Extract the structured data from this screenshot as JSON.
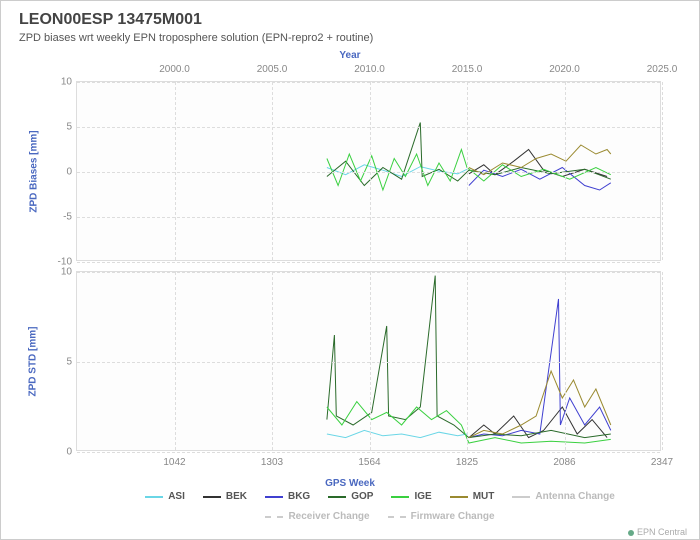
{
  "title": "LEON00ESP 13475M001",
  "subtitle": "ZPD biases wrt weekly EPN troposphere solution (EPN-repro2 + routine)",
  "top_axis": {
    "label": "Year",
    "ticks": [
      "2000.0",
      "2005.0",
      "2010.0",
      "2015.0",
      "2020.0",
      "2025.0"
    ]
  },
  "bottom_axis": {
    "label": "GPS Week",
    "ticks": [
      "1042",
      "1303",
      "1564",
      "1825",
      "2086",
      "2347"
    ]
  },
  "panel_top": {
    "ylabel": "ZPD Biases [mm]",
    "ylim": [
      -10,
      10
    ],
    "yticks": [
      -10,
      -5,
      0,
      5,
      10
    ]
  },
  "panel_bottom": {
    "ylabel": "ZPD STD [mm]",
    "ylim": [
      0,
      10
    ],
    "yticks": [
      0,
      5,
      10
    ]
  },
  "series": [
    {
      "name": "ASI",
      "color": "#6ad6e6",
      "style": "solid"
    },
    {
      "name": "BEK",
      "color": "#333333",
      "style": "solid"
    },
    {
      "name": "BKG",
      "color": "#4040d0",
      "style": "solid"
    },
    {
      "name": "GOP",
      "color": "#2a6a2a",
      "style": "solid"
    },
    {
      "name": "IGE",
      "color": "#3ad040",
      "style": "solid"
    },
    {
      "name": "MUT",
      "color": "#9a8a30",
      "style": "solid"
    },
    {
      "name": "Antenna Change",
      "color": "#cccccc",
      "style": "solid"
    },
    {
      "name": "Receiver Change",
      "color": "#cccccc",
      "style": "dashed"
    },
    {
      "name": "Firmware Change",
      "color": "#cccccc",
      "style": "dashed"
    }
  ],
  "credit": "EPN Central",
  "colors": {
    "grid": "#dddddd",
    "accent": "#4a68c0",
    "text": "#555555"
  },
  "x_range": [
    781,
    2347
  ],
  "data_top": {
    "ASI": [
      [
        1450,
        0.5
      ],
      [
        1500,
        -0.3
      ],
      [
        1550,
        0.8
      ],
      [
        1600,
        0.2
      ],
      [
        1650,
        -0.5
      ],
      [
        1700,
        0.6
      ],
      [
        1750,
        0.1
      ],
      [
        1800,
        -0.2
      ],
      [
        1825,
        0.3
      ]
    ],
    "BEK": [
      [
        1830,
        -0.2
      ],
      [
        1870,
        0.8
      ],
      [
        1900,
        -0.3
      ],
      [
        1950,
        1.2
      ],
      [
        1990,
        2.5
      ],
      [
        2030,
        0.2
      ],
      [
        2080,
        -0.5
      ],
      [
        2140,
        0.3
      ],
      [
        2200,
        -0.5
      ]
    ],
    "BKG": [
      [
        1830,
        -1.5
      ],
      [
        1870,
        0.2
      ],
      [
        1920,
        -0.5
      ],
      [
        1970,
        0.3
      ],
      [
        2020,
        -0.8
      ],
      [
        2080,
        0.5
      ],
      [
        2140,
        -1.5
      ],
      [
        2180,
        -2
      ],
      [
        2210,
        -1.2
      ]
    ],
    "GOP": [
      [
        1450,
        -0.5
      ],
      [
        1500,
        1.2
      ],
      [
        1550,
        -1.5
      ],
      [
        1600,
        0.5
      ],
      [
        1650,
        -0.8
      ],
      [
        1700,
        5.5
      ],
      [
        1705,
        -0.5
      ],
      [
        1750,
        0.3
      ],
      [
        1800,
        -1
      ],
      [
        1830,
        0.2
      ],
      [
        1900,
        -0.3
      ],
      [
        1970,
        0.5
      ],
      [
        2050,
        -0.2
      ],
      [
        2140,
        0.3
      ],
      [
        2210,
        -0.8
      ]
    ],
    "IGE": [
      [
        1450,
        1.5
      ],
      [
        1480,
        -1.5
      ],
      [
        1510,
        2
      ],
      [
        1540,
        -1
      ],
      [
        1570,
        1.8
      ],
      [
        1600,
        -2
      ],
      [
        1630,
        1.5
      ],
      [
        1660,
        -0.5
      ],
      [
        1690,
        2
      ],
      [
        1720,
        -1.5
      ],
      [
        1750,
        1
      ],
      [
        1780,
        -1
      ],
      [
        1810,
        2.5
      ],
      [
        1825,
        0.5
      ],
      [
        1870,
        -1
      ],
      [
        1920,
        0.8
      ],
      [
        1970,
        -0.5
      ],
      [
        2030,
        0.3
      ],
      [
        2100,
        -0.8
      ],
      [
        2170,
        0.5
      ],
      [
        2210,
        -0.3
      ]
    ],
    "MUT": [
      [
        1830,
        0.5
      ],
      [
        1870,
        -0.3
      ],
      [
        1920,
        1
      ],
      [
        1970,
        0.5
      ],
      [
        2010,
        1.5
      ],
      [
        2050,
        2
      ],
      [
        2090,
        1.2
      ],
      [
        2130,
        3
      ],
      [
        2170,
        2
      ],
      [
        2200,
        2.5
      ],
      [
        2210,
        2
      ]
    ]
  },
  "data_bottom": {
    "ASI": [
      [
        1450,
        1
      ],
      [
        1500,
        0.8
      ],
      [
        1550,
        1.2
      ],
      [
        1600,
        0.9
      ],
      [
        1650,
        1
      ],
      [
        1700,
        0.8
      ],
      [
        1750,
        1.1
      ],
      [
        1800,
        0.9
      ],
      [
        1825,
        1
      ]
    ],
    "BEK": [
      [
        1830,
        0.8
      ],
      [
        1870,
        1.5
      ],
      [
        1900,
        1
      ],
      [
        1950,
        2
      ],
      [
        1990,
        0.8
      ],
      [
        2030,
        1.2
      ],
      [
        2080,
        2.5
      ],
      [
        2120,
        1
      ],
      [
        2160,
        1.8
      ],
      [
        2200,
        0.8
      ]
    ],
    "BKG": [
      [
        1830,
        0.8
      ],
      [
        1870,
        1
      ],
      [
        1920,
        0.9
      ],
      [
        1970,
        1.2
      ],
      [
        2020,
        1
      ],
      [
        2070,
        8.5
      ],
      [
        2075,
        1.5
      ],
      [
        2100,
        3
      ],
      [
        2140,
        1.5
      ],
      [
        2180,
        2.5
      ],
      [
        2210,
        1.2
      ]
    ],
    "GOP": [
      [
        1450,
        1.8
      ],
      [
        1470,
        6.5
      ],
      [
        1475,
        2
      ],
      [
        1520,
        1.5
      ],
      [
        1570,
        2.2
      ],
      [
        1610,
        7
      ],
      [
        1615,
        2
      ],
      [
        1660,
        1.8
      ],
      [
        1700,
        2.5
      ],
      [
        1740,
        9.8
      ],
      [
        1745,
        2
      ],
      [
        1790,
        1.5
      ],
      [
        1830,
        0.8
      ],
      [
        1900,
        1
      ],
      [
        1970,
        0.9
      ],
      [
        2050,
        1.2
      ],
      [
        2140,
        0.8
      ],
      [
        2210,
        1
      ]
    ],
    "IGE": [
      [
        1450,
        2.5
      ],
      [
        1490,
        1.5
      ],
      [
        1530,
        2.8
      ],
      [
        1570,
        1.8
      ],
      [
        1610,
        2.2
      ],
      [
        1650,
        1.5
      ],
      [
        1690,
        2.5
      ],
      [
        1730,
        1.8
      ],
      [
        1770,
        2.3
      ],
      [
        1810,
        1.5
      ],
      [
        1830,
        0.5
      ],
      [
        1900,
        0.8
      ],
      [
        1970,
        0.5
      ],
      [
        2050,
        0.6
      ],
      [
        2140,
        0.5
      ],
      [
        2210,
        0.7
      ]
    ],
    "MUT": [
      [
        1830,
        0.8
      ],
      [
        1870,
        1.2
      ],
      [
        1920,
        1
      ],
      [
        1970,
        1.5
      ],
      [
        2010,
        2
      ],
      [
        2050,
        4.5
      ],
      [
        2080,
        3
      ],
      [
        2110,
        4
      ],
      [
        2140,
        2.5
      ],
      [
        2170,
        3.5
      ],
      [
        2200,
        2
      ],
      [
        2210,
        1.5
      ]
    ]
  }
}
